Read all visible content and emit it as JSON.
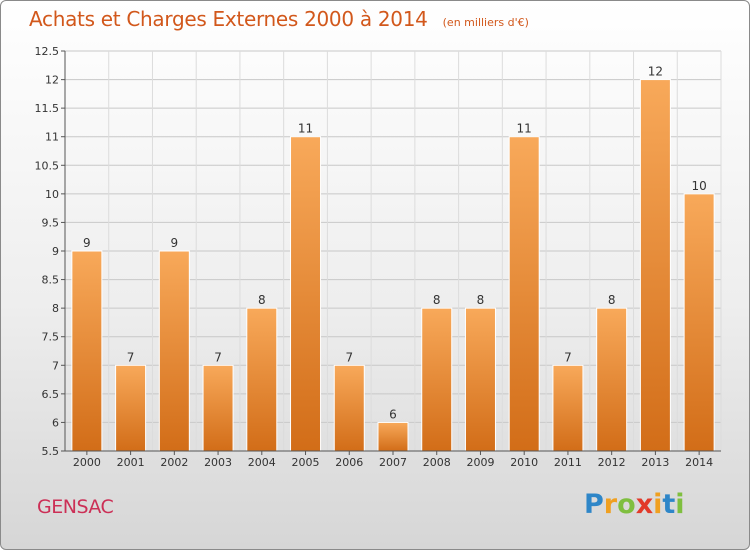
{
  "title": "Achats et Charges Externes 2000 à 2014",
  "subtitle": "(en milliers d'€)",
  "city": "GENSAC",
  "logo": {
    "letters": [
      "P",
      "r",
      "o",
      "x",
      "i",
      "t",
      "i"
    ],
    "colors": [
      "#2e86c8",
      "#f0a020",
      "#7fbf3f",
      "#e23a2a",
      "#f0a020",
      "#2e86c8",
      "#7fbf3f"
    ]
  },
  "colors": {
    "title": "#d2581c",
    "city": "#cc2f56",
    "bar_light": "#f8a95a",
    "bar_dark": "#d26d18"
  },
  "chart_data": {
    "type": "bar",
    "categories": [
      "2000",
      "2001",
      "2002",
      "2003",
      "2004",
      "2005",
      "2006",
      "2007",
      "2008",
      "2009",
      "2010",
      "2011",
      "2012",
      "2013",
      "2014"
    ],
    "values": [
      9,
      7,
      9,
      7,
      8,
      11,
      7,
      6,
      8,
      8,
      11,
      7,
      8,
      12,
      10
    ],
    "ylim": [
      5.5,
      12.5
    ],
    "yticks": [
      "5.5",
      "6",
      "6.5",
      "7",
      "7.5",
      "8",
      "8.5",
      "9",
      "9.5",
      "10",
      "10.5",
      "11",
      "11.5",
      "12",
      "12.5"
    ],
    "grid": true
  }
}
